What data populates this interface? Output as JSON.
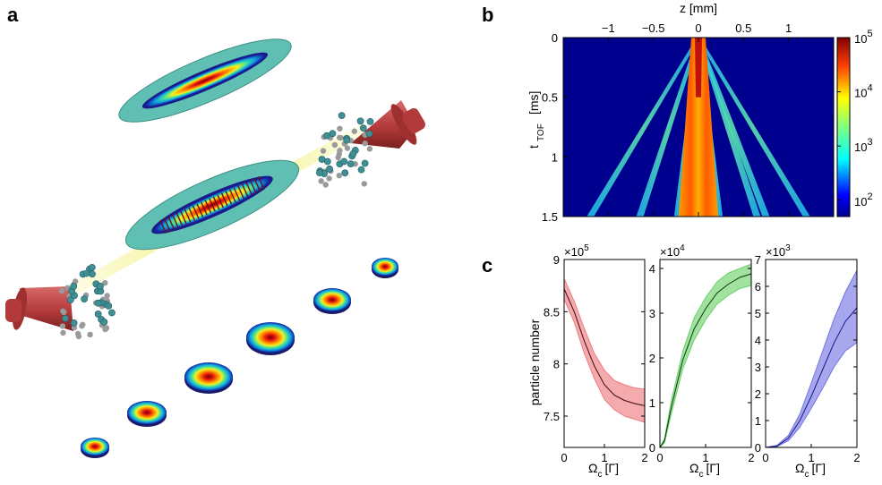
{
  "panels": {
    "a": {
      "letter": "a"
    },
    "b": {
      "letter": "b"
    },
    "c": {
      "letter": "c"
    }
  },
  "colors": {
    "teal": "#5fbfb2",
    "laser_red": "#b33a3a",
    "beam_yellow": "#f2ef6a",
    "atom_teal": "#3f8f94",
    "atom_grey": "#9a9a9a",
    "red_band": "#f0888c",
    "green_band": "#8fe98f",
    "blue_band": "#9a9af0"
  },
  "chart_data": [
    {
      "type": "heatmap",
      "xlabel": "z [mm]",
      "ylabel_main": "t",
      "ylabel_sub": "TOF",
      "ylabel_unit": "[ms]",
      "x_ticks": [
        "−1",
        "−0.5",
        "0",
        "0.5",
        "1"
      ],
      "x_tick_values": [
        -1,
        -0.5,
        0,
        0.5,
        1
      ],
      "xlim": [
        -1.5,
        1.5
      ],
      "y_ticks": [
        "0",
        "0.5",
        "1",
        "1.5"
      ],
      "y_tick_values": [
        0,
        0.5,
        1,
        1.5
      ],
      "ylim": [
        0,
        1.5
      ],
      "colorbar": {
        "scale": "log",
        "range": [
          50,
          100000
        ],
        "tick_exponents": [
          "2",
          "3",
          "4",
          "5"
        ],
        "tick_base": "10"
      },
      "streaks_z_at_1_5ms": [
        -1.2,
        -0.65,
        -0.2,
        0.2,
        0.65,
        0.75,
        1.2
      ]
    },
    {
      "type": "line",
      "ylabel": "particle number",
      "xlabel_main": "Ω",
      "xlabel_sub": "c",
      "xlabel_unit": "[Γ]",
      "x_ticks": [
        "0",
        "1",
        "2"
      ],
      "plots": [
        {
          "color": "#e8454b",
          "multiplier_base": "×10",
          "multiplier_exp": "5",
          "ylim": [
            7.2,
            9
          ],
          "y_ticks": [
            "7.5",
            "8",
            "8.5",
            "9"
          ],
          "y_tick_values": [
            7.5,
            8,
            8.5,
            9
          ],
          "x": [
            0,
            0.25,
            0.5,
            0.75,
            1,
            1.25,
            1.5,
            1.75,
            2
          ],
          "mean": [
            8.72,
            8.5,
            8.22,
            7.98,
            7.8,
            7.7,
            7.65,
            7.62,
            7.6
          ],
          "lower": [
            8.62,
            8.4,
            8.1,
            7.86,
            7.66,
            7.56,
            7.5,
            7.47,
            7.44
          ],
          "upper": [
            8.82,
            8.6,
            8.34,
            8.1,
            7.94,
            7.84,
            7.8,
            7.77,
            7.76
          ]
        },
        {
          "color": "#2fbf2f",
          "multiplier_base": "×10",
          "multiplier_exp": "4",
          "ylim": [
            0,
            4.2
          ],
          "y_ticks": [
            "0",
            "1",
            "2",
            "3",
            "4"
          ],
          "y_tick_values": [
            0,
            1,
            2,
            3,
            4
          ],
          "x": [
            0,
            0.1,
            0.25,
            0.5,
            0.75,
            1,
            1.25,
            1.5,
            1.75,
            2
          ],
          "mean": [
            0,
            0.15,
            0.9,
            1.95,
            2.65,
            3.1,
            3.45,
            3.65,
            3.8,
            3.88
          ],
          "lower": [
            0,
            0.1,
            0.75,
            1.75,
            2.4,
            2.85,
            3.2,
            3.4,
            3.55,
            3.62
          ],
          "upper": [
            0,
            0.2,
            1.05,
            2.15,
            2.9,
            3.35,
            3.7,
            3.9,
            4.0,
            4.1
          ]
        },
        {
          "color": "#3b3bd9",
          "multiplier_base": "×10",
          "multiplier_exp": "3",
          "ylim": [
            0,
            7
          ],
          "y_ticks": [
            "0",
            "1",
            "2",
            "3",
            "4",
            "5",
            "6",
            "7"
          ],
          "y_tick_values": [
            0,
            1,
            2,
            3,
            4,
            5,
            6,
            7
          ],
          "x": [
            0,
            0.25,
            0.5,
            0.75,
            1,
            1.25,
            1.5,
            1.75,
            2
          ],
          "mean": [
            0,
            0.05,
            0.35,
            1.0,
            1.9,
            2.9,
            3.9,
            4.7,
            5.2
          ],
          "lower": [
            0,
            0.03,
            0.25,
            0.75,
            1.45,
            2.2,
            3.0,
            3.6,
            3.9
          ],
          "upper": [
            0,
            0.08,
            0.45,
            1.25,
            2.4,
            3.6,
            4.8,
            5.8,
            6.6
          ]
        }
      ]
    }
  ]
}
